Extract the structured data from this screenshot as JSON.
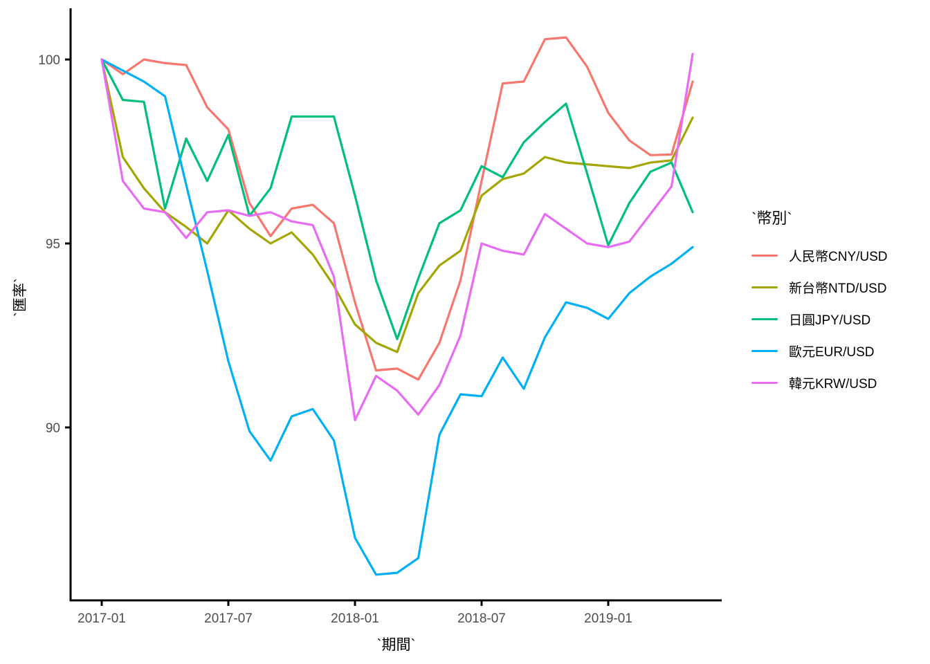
{
  "page": {
    "background_color": "#ffffff",
    "description": "Indexed exchange-rate line chart, ggplot2 classic style, no gridlines"
  },
  "axes": {
    "x_title": "`期間`",
    "y_title": "`匯率`",
    "tick_color": "#4d4d4d",
    "axis_line_color": "#000000"
  },
  "legend": {
    "title": "`幣別`",
    "items": [
      {
        "label": "人民幣CNY/USD",
        "color": "#F8766D"
      },
      {
        "label": "新台幣NTD/USD",
        "color": "#A3A500"
      },
      {
        "label": "日圓JPY/USD",
        "color": "#00BF7D"
      },
      {
        "label": "歐元EUR/USD",
        "color": "#00B0F6"
      },
      {
        "label": "韓元KRW/USD",
        "color": "#E76BF3"
      }
    ]
  },
  "chart_data": {
    "type": "line",
    "title": "",
    "xlabel": "`期間`",
    "ylabel": "`匯率`",
    "legend_title": "`幣別`",
    "legend_position": "right",
    "grid": false,
    "ylim": [
      85.3,
      101.2
    ],
    "y_ticks": [
      100,
      95,
      90
    ],
    "x_ticks": [
      {
        "label": "2017-01",
        "month_index": 0
      },
      {
        "label": "2017-07",
        "month_index": 6
      },
      {
        "label": "2018-01",
        "month_index": 12
      },
      {
        "label": "2018-07",
        "month_index": 18
      },
      {
        "label": "2019-01",
        "month_index": 24
      }
    ],
    "x": [
      "2017-01",
      "2017-02",
      "2017-03",
      "2017-04",
      "2017-05",
      "2017-06",
      "2017-07",
      "2017-08",
      "2017-09",
      "2017-10",
      "2017-11",
      "2017-12",
      "2018-01",
      "2018-02",
      "2018-03",
      "2018-04",
      "2018-05",
      "2018-06",
      "2018-07",
      "2018-08",
      "2018-09",
      "2018-10",
      "2018-11",
      "2018-12",
      "2019-01",
      "2019-02",
      "2019-03",
      "2019-04",
      "2019-05"
    ],
    "series": [
      {
        "name": "人民幣CNY/USD",
        "color": "#F8766D",
        "values": [
          100,
          99.6,
          100,
          99.9,
          99.85,
          98.7,
          98.1,
          96.1,
          95.2,
          95.95,
          96.05,
          95.55,
          93.4,
          91.55,
          91.6,
          91.3,
          92.3,
          94,
          96.7,
          99.35,
          99.4,
          100.55,
          100.6,
          99.8,
          98.55,
          97.8,
          97.4,
          97.42,
          99.4
        ]
      },
      {
        "name": "新台幣NTD/USD",
        "color": "#A3A500",
        "values": [
          100,
          97.35,
          96.5,
          95.85,
          95.45,
          95,
          95.9,
          95.4,
          95,
          95.3,
          94.7,
          93.85,
          92.8,
          92.3,
          92.05,
          93.65,
          94.4,
          94.8,
          96.3,
          96.75,
          96.9,
          97.35,
          97.2,
          97.15,
          97.1,
          97.05,
          97.2,
          97.26,
          98.42
        ]
      },
      {
        "name": "日圓JPY/USD",
        "color": "#00BF7D",
        "values": [
          100,
          98.9,
          98.85,
          95.95,
          97.85,
          96.7,
          97.95,
          95.75,
          96.5,
          98.45,
          98.45,
          98.45,
          96.3,
          94,
          92.4,
          94.05,
          95.55,
          95.9,
          97.1,
          96.8,
          97.75,
          98.3,
          98.8,
          96.9,
          94.95,
          96.1,
          96.95,
          97.2,
          95.85
        ]
      },
      {
        "name": "歐元EUR/USD",
        "color": "#00B0F6",
        "values": [
          100,
          99.7,
          99.4,
          99,
          96.6,
          94.25,
          91.8,
          89.9,
          89.1,
          90.3,
          90.5,
          89.65,
          87,
          86,
          86.05,
          86.45,
          89.8,
          90.9,
          90.85,
          91.9,
          91.05,
          92.45,
          93.4,
          93.25,
          92.95,
          93.65,
          94.1,
          94.45,
          94.9
        ]
      },
      {
        "name": "韓元KRW/USD",
        "color": "#E76BF3",
        "values": [
          100,
          96.7,
          95.95,
          95.85,
          95.15,
          95.85,
          95.9,
          95.75,
          95.85,
          95.6,
          95.5,
          94.1,
          90.2,
          91.4,
          91,
          90.35,
          91.15,
          92.5,
          95,
          94.8,
          94.7,
          95.8,
          95.4,
          95,
          94.9,
          95.05,
          95.8,
          96.55,
          100.15
        ]
      }
    ]
  }
}
